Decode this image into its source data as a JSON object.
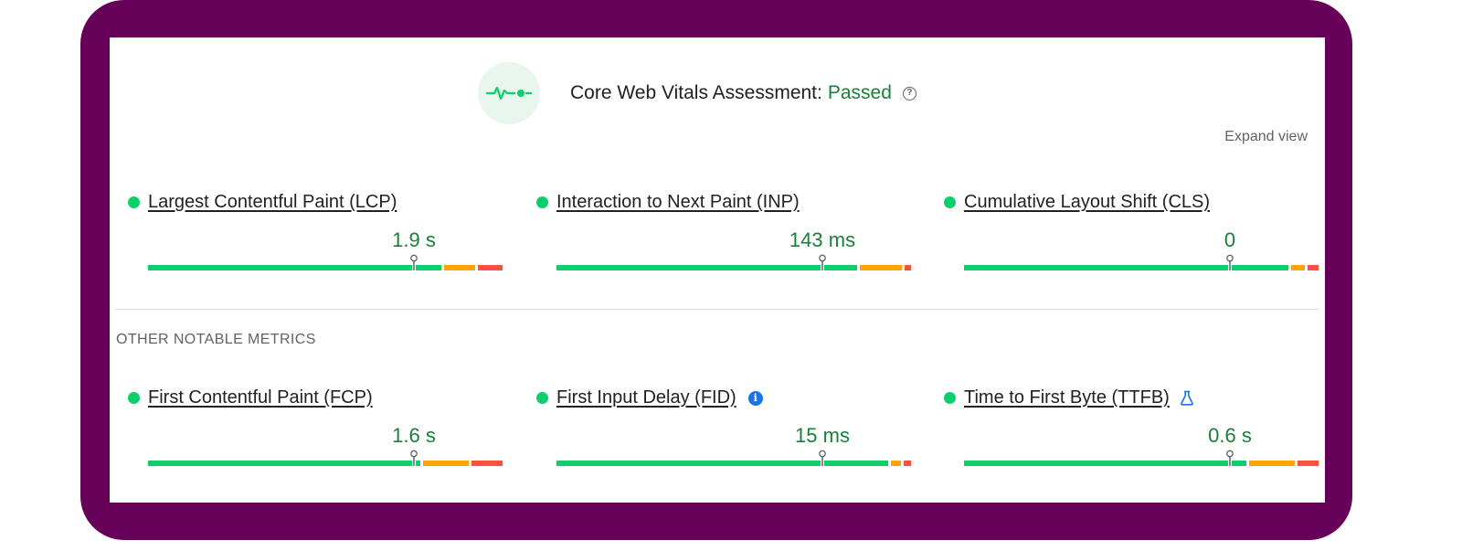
{
  "colors": {
    "frame": "#660059",
    "good": "#0cce6b",
    "needs_improvement": "#ffa400",
    "poor": "#ff4e42",
    "passed_text": "#188038",
    "badge_bg": "#e9f6ee"
  },
  "assessment": {
    "icon": "pulse-icon",
    "title": "Core Web Vitals Assessment:",
    "status": "Passed",
    "help_icon": "help-circle-icon"
  },
  "expand_view": "Expand view",
  "other_section_title": "OTHER NOTABLE METRICS",
  "core_metrics": [
    {
      "label": "Largest Contentful Paint (LCP)",
      "value": "1.9 s",
      "good_fraction": 0.84,
      "needs_fraction": 0.09,
      "poor_fraction": 0.07,
      "marker_fraction": 0.75
    },
    {
      "label": "Interaction to Next Paint (INP)",
      "value": "143 ms",
      "good_fraction": 0.86,
      "needs_fraction": 0.12,
      "poor_fraction": 0.05,
      "marker_fraction": 0.75
    },
    {
      "label": "Cumulative Layout Shift (CLS)",
      "value": "0",
      "good_fraction": 0.93,
      "needs_fraction": 0.04,
      "poor_fraction": 0.03,
      "marker_fraction": 0.75
    }
  ],
  "other_metrics": [
    {
      "label": "First Contentful Paint (FCP)",
      "value": "1.6 s",
      "good_fraction": 0.78,
      "needs_fraction": 0.13,
      "poor_fraction": 0.09,
      "marker_fraction": 0.75,
      "badge": ""
    },
    {
      "label": "First Input Delay (FID)",
      "value": "15 ms",
      "good_fraction": 0.95,
      "needs_fraction": 0.03,
      "poor_fraction": 0.02,
      "marker_fraction": 0.75,
      "badge": "info-icon"
    },
    {
      "label": "Time to First Byte (TTFB)",
      "value": "0.6 s",
      "good_fraction": 0.81,
      "needs_fraction": 0.13,
      "poor_fraction": 0.06,
      "marker_fraction": 0.75,
      "badge": "experimental-flask-icon"
    }
  ]
}
